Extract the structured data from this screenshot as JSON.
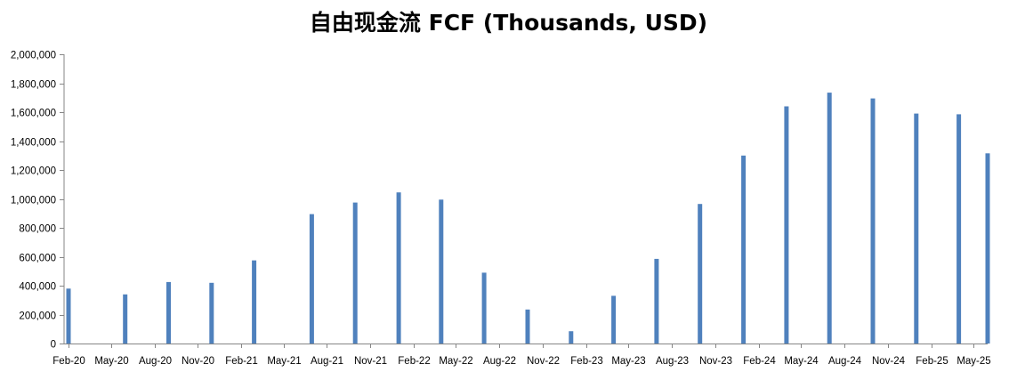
{
  "chart_data": {
    "type": "bar",
    "title": "自由现金流 FCF (Thousands, USD)",
    "xlabel": "",
    "ylabel": "",
    "ylim": [
      0,
      2000000
    ],
    "yticks": [
      "0",
      "200,000",
      "400,000",
      "600,000",
      "800,000",
      "1,000,000",
      "1,200,000",
      "1,400,000",
      "1,600,000",
      "1,800,000",
      "2,000,000"
    ],
    "x_range": [
      "2020-02-01",
      "2025-05-31"
    ],
    "xtick_labels": [
      "Feb-20",
      "May-20",
      "Aug-20",
      "Nov-20",
      "Feb-21",
      "May-21",
      "Aug-21",
      "Nov-21",
      "Feb-22",
      "May-22",
      "Aug-22",
      "Nov-22",
      "Feb-23",
      "May-23",
      "Aug-23",
      "Nov-23",
      "Feb-24",
      "May-24",
      "Aug-24",
      "Nov-24",
      "Feb-25",
      "May-25"
    ],
    "xtick_dates": [
      "2020-02-01",
      "2020-05-01",
      "2020-08-01",
      "2020-11-01",
      "2021-02-01",
      "2021-05-01",
      "2021-08-01",
      "2021-11-01",
      "2022-02-01",
      "2022-05-01",
      "2022-08-01",
      "2022-11-01",
      "2023-02-01",
      "2023-05-01",
      "2023-08-01",
      "2023-11-01",
      "2024-02-01",
      "2024-05-01",
      "2024-08-01",
      "2024-11-01",
      "2025-02-01",
      "2025-05-01"
    ],
    "series": [
      {
        "color": "#4F81BD",
        "points": [
          {
            "date": "2020-02-01",
            "value": 380000
          },
          {
            "date": "2020-05-31",
            "value": 340000
          },
          {
            "date": "2020-08-31",
            "value": 425000
          },
          {
            "date": "2020-11-30",
            "value": 420000
          },
          {
            "date": "2021-02-28",
            "value": 575000
          },
          {
            "date": "2021-06-30",
            "value": 895000
          },
          {
            "date": "2021-09-30",
            "value": 975000
          },
          {
            "date": "2021-12-31",
            "value": 1045000
          },
          {
            "date": "2022-03-31",
            "value": 995000
          },
          {
            "date": "2022-06-30",
            "value": 490000
          },
          {
            "date": "2022-09-30",
            "value": 235000
          },
          {
            "date": "2022-12-31",
            "value": 85000
          },
          {
            "date": "2023-03-31",
            "value": 330000
          },
          {
            "date": "2023-06-30",
            "value": 585000
          },
          {
            "date": "2023-09-30",
            "value": 965000
          },
          {
            "date": "2023-12-31",
            "value": 1300000
          },
          {
            "date": "2024-03-31",
            "value": 1640000
          },
          {
            "date": "2024-06-30",
            "value": 1735000
          },
          {
            "date": "2024-09-30",
            "value": 1695000
          },
          {
            "date": "2024-12-31",
            "value": 1590000
          },
          {
            "date": "2025-03-31",
            "value": 1585000
          },
          {
            "date": "2025-05-31",
            "value": 1315000
          }
        ]
      }
    ]
  }
}
